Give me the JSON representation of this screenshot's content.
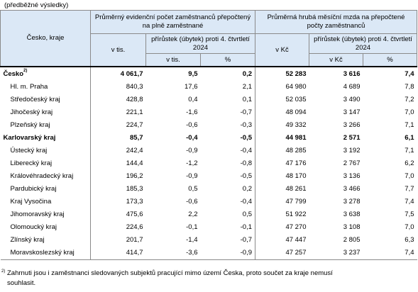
{
  "caption": "(předběžné výsledky)",
  "header": {
    "region_col": "Česko, kraje",
    "group1_title": "Průměrný evidenční počet zaměstnanců přepočtený na plně zaměstnané",
    "group2_title": "Průměrná hrubá měsíční mzda na přepočtené počty zaměstnanců",
    "g1_abs": "v tis.",
    "g1_change": "přírůstek (úbytek) proti 4. čtvrtletí 2024",
    "g1_change_abs": "v tis.",
    "g1_change_pct": "%",
    "g2_abs": "v Kč",
    "g2_change": "přírůstek (úbytek) proti 4. čtvrtletí 2024",
    "g2_change_abs": "v Kč",
    "g2_change_pct": "%"
  },
  "total": {
    "name": "Česko",
    "sup": "2)",
    "values": [
      "4 061,7",
      "9,5",
      "0,2",
      "52 283",
      "3 616",
      "7,4"
    ]
  },
  "rows": [
    {
      "name": "Hl. m. Praha",
      "values": [
        "840,3",
        "17,6",
        "2,1",
        "64 980",
        "4 689",
        "7,8"
      ]
    },
    {
      "name": "Středočeský kraj",
      "values": [
        "428,8",
        "0,4",
        "0,1",
        "52 035",
        "3 490",
        "7,2"
      ]
    },
    {
      "name": "Jihočeský kraj",
      "values": [
        "221,1",
        "-1,6",
        "-0,7",
        "48 094",
        "3 147",
        "7,0"
      ]
    },
    {
      "name": "Plzeňský kraj",
      "values": [
        "224,7",
        "-0,6",
        "-0,3",
        "49 332",
        "3 266",
        "7,1"
      ]
    },
    {
      "name": "Karlovarský kraj",
      "values": [
        "85,7",
        "-0,4",
        "-0,5",
        "44 981",
        "2 571",
        "6,1"
      ]
    },
    {
      "name": "Ústecký kraj",
      "values": [
        "242,4",
        "-0,9",
        "-0,4",
        "48 285",
        "3 192",
        "7,1"
      ]
    },
    {
      "name": "Liberecký kraj",
      "values": [
        "144,4",
        "-1,2",
        "-0,8",
        "47 176",
        "2 767",
        "6,2"
      ]
    },
    {
      "name": "Královéhradecký kraj",
      "values": [
        "196,2",
        "-0,9",
        "-0,5",
        "48 170",
        "3 136",
        "7,0"
      ]
    },
    {
      "name": "Pardubický kraj",
      "values": [
        "185,3",
        "0,5",
        "0,2",
        "48 261",
        "3 466",
        "7,7"
      ]
    },
    {
      "name": "Kraj Vysočina",
      "values": [
        "173,3",
        "-0,6",
        "-0,4",
        "47 799",
        "3 278",
        "7,4"
      ]
    },
    {
      "name": "Jihomoravský kraj",
      "values": [
        "475,6",
        "2,2",
        "0,5",
        "51 922",
        "3 638",
        "7,5"
      ]
    },
    {
      "name": "Olomoucký kraj",
      "values": [
        "224,6",
        "-0,1",
        "-0,1",
        "47 270",
        "3 108",
        "7,0"
      ]
    },
    {
      "name": "Zlínský kraj",
      "values": [
        "201,7",
        "-1,4",
        "-0,7",
        "47 447",
        "2 805",
        "6,3"
      ]
    },
    {
      "name": "Moravskoslezský kraj",
      "values": [
        "414,7",
        "-3,6",
        "-0,9",
        "47 257",
        "3 237",
        "7,4"
      ]
    }
  ],
  "footnote": {
    "mark": "2)",
    "text": "Zahrnuti jsou i zaměstnanci sledovaných subjektů pracující mimo území Česka, proto součet za kraje nemusí souhlasit."
  }
}
